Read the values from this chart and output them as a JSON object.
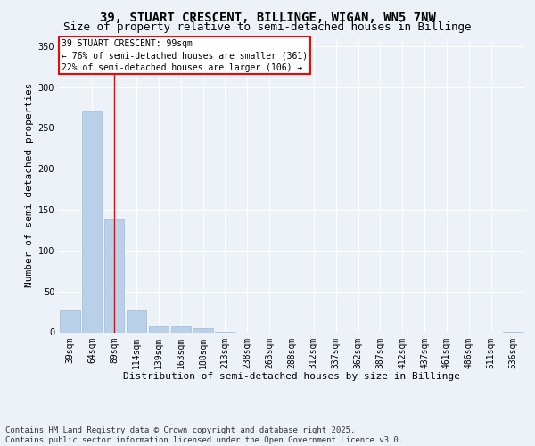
{
  "title": "39, STUART CRESCENT, BILLINGE, WIGAN, WN5 7NW",
  "subtitle": "Size of property relative to semi-detached houses in Billinge",
  "xlabel": "Distribution of semi-detached houses by size in Billinge",
  "ylabel": "Number of semi-detached properties",
  "bar_color": "#b8d0e8",
  "bar_edge_color": "#a0bcd8",
  "categories": [
    "39sqm",
    "64sqm",
    "89sqm",
    "114sqm",
    "139sqm",
    "163sqm",
    "188sqm",
    "213sqm",
    "238sqm",
    "263sqm",
    "288sqm",
    "312sqm",
    "337sqm",
    "362sqm",
    "387sqm",
    "412sqm",
    "437sqm",
    "461sqm",
    "486sqm",
    "511sqm",
    "536sqm"
  ],
  "values": [
    27,
    270,
    138,
    27,
    7,
    7,
    5,
    1,
    0,
    0,
    0,
    0,
    0,
    0,
    0,
    0,
    0,
    0,
    0,
    0,
    1
  ],
  "ylim": [
    0,
    360
  ],
  "yticks": [
    0,
    50,
    100,
    150,
    200,
    250,
    300,
    350
  ],
  "annotation_text": "39 STUART CRESCENT: 99sqm\n← 76% of semi-detached houses are smaller (361)\n22% of semi-detached houses are larger (106) →",
  "red_line_x": 2.0,
  "footer_text": "Contains HM Land Registry data © Crown copyright and database right 2025.\nContains public sector information licensed under the Open Government Licence v3.0.",
  "background_color": "#edf2f9",
  "grid_color": "#ffffff",
  "title_fontsize": 10,
  "subtitle_fontsize": 9,
  "axis_fontsize": 8,
  "tick_fontsize": 7,
  "footer_fontsize": 6.5
}
